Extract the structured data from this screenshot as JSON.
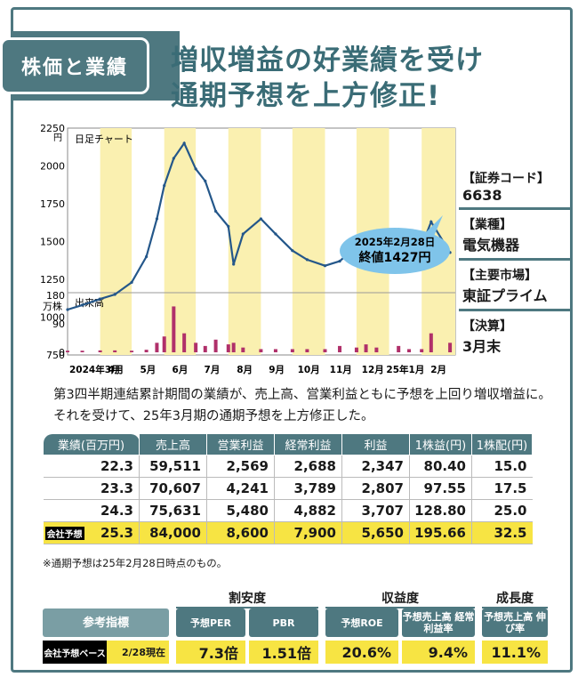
{
  "badge": "株価と業績",
  "headline": [
    "増収増益の好業績を受け",
    "通期予想を上方修正!"
  ],
  "chart": {
    "price_label": "日足チャート",
    "price_unit": "円",
    "volume_label": "出来高",
    "volume_unit": "万株",
    "callout_date": "2025年2月28日",
    "callout_price": "終値1427円"
  },
  "chart_data": {
    "type": "line",
    "series": [
      {
        "x": [
          "2024-03-01",
          "2024-03-15",
          "2024-04-01",
          "2024-04-15",
          "2024-05-01",
          "2024-05-15",
          "2024-05-25",
          "2024-06-01",
          "2024-06-10",
          "2024-06-20",
          "2024-07-01",
          "2024-07-10",
          "2024-07-20",
          "2024-08-01",
          "2024-08-06",
          "2024-08-15",
          "2024-09-01",
          "2024-09-15",
          "2024-10-01",
          "2024-10-15",
          "2024-11-01",
          "2024-11-15",
          "2024-12-01",
          "2024-12-10",
          "2024-12-20",
          "2025-01-10",
          "2025-01-20",
          "2025-02-01",
          "2025-02-10",
          "2025-02-28"
        ],
        "values": [
          1050,
          1080,
          1120,
          1150,
          1230,
          1400,
          1650,
          1870,
          2050,
          2150,
          1980,
          1900,
          1700,
          1600,
          1350,
          1550,
          1650,
          1550,
          1440,
          1380,
          1340,
          1370,
          1470,
          1550,
          1510,
          1580,
          1520,
          1470,
          1630,
          1427
        ]
      },
      {
        "name": "出来高",
        "values": [
          5,
          5,
          6,
          6,
          5,
          8,
          30,
          50,
          145,
          60,
          30,
          20,
          40,
          25,
          30,
          15,
          10,
          10,
          10,
          10,
          10,
          20,
          15,
          25,
          15,
          20,
          10,
          10,
          60,
          30
        ]
      }
    ],
    "y_ticks": [
      2250,
      2000,
      1750,
      1500,
      1250,
      1000,
      750
    ],
    "volume_ticks": [
      180,
      90,
      0
    ],
    "x_ticks": [
      "2024年3月",
      "4月",
      "5月",
      "6月",
      "7月",
      "8月",
      "9月",
      "10月",
      "11月",
      "12月",
      "25年1月",
      "2月"
    ],
    "ylim": [
      750,
      2250
    ],
    "volume_lim": [
      0,
      180
    ]
  },
  "company": [
    {
      "label": "【証券コード】",
      "value": "6638"
    },
    {
      "label": "【業種】",
      "value": "電気機器"
    },
    {
      "label": "【主要市場】",
      "value": "東証プライム"
    },
    {
      "label": "【決算】",
      "value": "3月末"
    }
  ],
  "summary": "第3四半期連結累計期間の業績が、売上高、営業利益ともに予想を上回り増収増益に。それを受けて、25年3月期の通期予想を上方修正した。",
  "table": {
    "headers": [
      "業績(百万円)",
      "売上高",
      "営業利益",
      "経常利益",
      "利益",
      "1株益(円)",
      "1株配(円)"
    ],
    "forecast_tag": "会社予想",
    "rows": [
      [
        "22.3",
        "59,511",
        "2,569",
        "2,688",
        "2,347",
        "80.40",
        "15.0"
      ],
      [
        "23.3",
        "70,607",
        "4,241",
        "3,789",
        "2,807",
        "97.55",
        "17.5"
      ],
      [
        "24.3",
        "75,631",
        "5,480",
        "4,882",
        "3,707",
        "128.80",
        "25.0"
      ],
      [
        "25.3",
        "84,000",
        "8,600",
        "7,900",
        "5,650",
        "195.66",
        "32.5"
      ]
    ]
  },
  "note": "※通期予想は25年2月28日時点のもの。",
  "ref": {
    "categories": [
      "割安度",
      "収益度",
      "成長度"
    ],
    "title": "参考指標",
    "base_label": "会社予想ベース",
    "date": "2/28現在",
    "items": [
      {
        "label": "予想PER",
        "value": "7.3倍"
      },
      {
        "label": "PBR",
        "value": "1.51倍"
      },
      {
        "label": "予想ROE",
        "value": "20.6%"
      },
      {
        "label": "予想売上高 経常利益率",
        "value": "9.4%"
      },
      {
        "label": "予想売上高 伸び率",
        "value": "11.1%"
      }
    ]
  }
}
